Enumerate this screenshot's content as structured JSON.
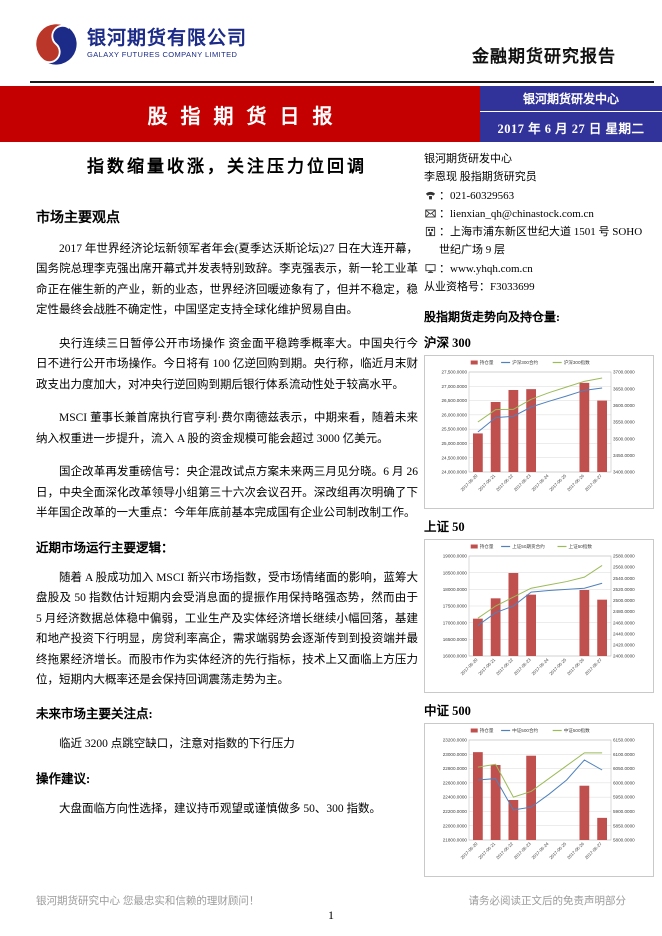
{
  "header": {
    "company_cn": "银河期货有限公司",
    "company_en": "GALAXY FUTURES COMPANY LIMITED",
    "report_type": "金融期货研究报告",
    "banner_title": "股指期货日报",
    "dept": "银河期货研发中心",
    "date": "2017 年 6 月 27 日  星期二",
    "banner_color": "#c50000",
    "info_box_color": "#32329b",
    "logo_color_blue": "#1c2b87",
    "logo_color_red": "#b93629",
    "logo_icon": "galaxy-swirl-icon"
  },
  "article": {
    "title": "指数缩量收涨，关注压力位回调",
    "heading_main": "市场主要观点",
    "p1": "2017 年世界经济论坛新领军者年会(夏季达沃斯论坛)27 日在大连开幕，国务院总理李克强出席开幕式并发表特别致辞。李克强表示，新一轮工业革命正在催生新的产业，新的业态，世界经济回暖迹象有了，但并不稳定，稳定性最终会战胜不确定性，中国坚定支持全球化维护贸易自由。",
    "p2": "央行连续三日暂停公开市场操作 资金面平稳跨季概率大。中国央行今日不进行公开市场操作。今日将有 100 亿逆回购到期。央行称，临近月末财政支出力度加大，对冲央行逆回购到期后银行体系流动性处于较高水平。",
    "p3": "MSCI 董事长兼首席执行官亨利·费尔南德兹表示，中期来看，随着未来纳入权重进一步提升，流入 A 股的资金规模可能会超过 3000 亿美元。",
    "p4": "国企改革再发重磅信号：央企混改试点方案未来两三月见分晓。6 月 26 日，中央全面深化改革领导小组第三十六次会议召开。深改组再次明确了下半年国企改革的一大重点：今年年底前基本完成国有企业公司制改制工作。",
    "heading_logic": "近期市场运行主要逻辑：",
    "p5": "随着 A 股成功加入 MSCI 新兴市场指数，受市场情绪面的影响，蓝筹大盘股及 50 指数估计短期内会受消息面的提振作用保持略强态势，然而由于 5 月经济数据总体稳中偏弱，工业生产及实体经济增长继续小幅回落，基建和地产投资下行明显，房贷利率高企，需求端弱势会逐渐传到到投资端并最终拖累经济增长。而股市作为实体经济的先行指标，技术上又面临上方压力位，短期内大概率还是会保持回调震荡走势为主。",
    "heading_focus": "未来市场主要关注点:",
    "p6": "临近 3200 点跳空缺口，注意对指数的下行压力",
    "heading_advice": "操作建议:",
    "p7": "大盘面临方向性选择，建议持币观望或谨慎做多 50、300 指数。"
  },
  "contact": {
    "dept": "银河期货研发中心",
    "analyst": "李恩现  股指期货研究员",
    "phone": {
      "icon": "phone-icon",
      "text": "：021-60329563"
    },
    "email": {
      "icon": "email-icon",
      "text": "：lienxian_qh@chinastock.com.cn"
    },
    "address": {
      "icon": "address-icon",
      "text": "：上海市浦东新区世纪大道 1501 号 SOHO 世纪广场 9 层"
    },
    "website": {
      "icon": "website-icon",
      "text": "：www.yhqh.com.cn"
    },
    "license": "从业资格号：F3033699"
  },
  "charts_section": {
    "heading": "股指期货走势向及持仓量:"
  },
  "chart_data": [
    {
      "type": "bar",
      "title": "沪深 300",
      "legend_position": "top",
      "grid": true,
      "categories": [
        "2017-06-20",
        "2017-06-21",
        "2017-06-22",
        "2017-06-23",
        "2017-06-24",
        "2017-06-25",
        "2017-06-26",
        "2017-06-27"
      ],
      "series": [
        {
          "name": "持仓量",
          "type": "bar",
          "axis": "left",
          "color": "#C0504D",
          "values": [
            25350,
            26450,
            26870,
            26900,
            null,
            null,
            27120,
            26500
          ]
        },
        {
          "name": "沪深300合约",
          "type": "line",
          "axis": "right",
          "color": "#4F81BD",
          "values": [
            3520,
            3563,
            3567,
            3595,
            3612,
            3628,
            3645,
            3652
          ]
        },
        {
          "name": "沪深300指数",
          "type": "line",
          "axis": "right",
          "color": "#9BBB59",
          "values": [
            3550,
            3587,
            3588,
            3618,
            3638,
            3655,
            3672,
            3682
          ]
        }
      ],
      "axes": {
        "left": {
          "min": 24000,
          "max": 27500,
          "step": 500,
          "comma": true
        },
        "right": {
          "min": 3400,
          "max": 3700,
          "step": 50,
          "comma": false
        }
      }
    },
    {
      "type": "bar",
      "title": "上证 50",
      "legend_position": "top",
      "grid": true,
      "categories": [
        "2017-06-20",
        "2017-06-21",
        "2017-06-22",
        "2017-06-23",
        "2017-06-24",
        "2017-06-25",
        "2017-06-26",
        "2017-06-27"
      ],
      "series": [
        {
          "name": "持仓量",
          "type": "bar",
          "axis": "left",
          "color": "#C0504D",
          "values": [
            17120,
            17730,
            18490,
            17840,
            null,
            null,
            17980,
            17690
          ]
        },
        {
          "name": "上证50期货合约",
          "type": "line",
          "axis": "right",
          "color": "#4F81BD",
          "values": [
            2455,
            2478,
            2490,
            2515,
            2518,
            2520,
            2522,
            2531
          ]
        },
        {
          "name": "上证50指数",
          "type": "line",
          "axis": "right",
          "color": "#9BBB59",
          "values": [
            2468,
            2490,
            2506,
            2522,
            2528,
            2534,
            2542,
            2563
          ]
        }
      ],
      "axes": {
        "left": {
          "min": 16000,
          "max": 19000,
          "step": 500,
          "comma": false
        },
        "right": {
          "min": 2400,
          "max": 2580,
          "step": 20,
          "comma": false
        }
      }
    },
    {
      "type": "bar",
      "title": "中证 500",
      "legend_position": "top",
      "grid": true,
      "categories": [
        "2017-06-20",
        "2017-06-21",
        "2017-06-22",
        "2017-06-23",
        "2017-06-24",
        "2017-06-25",
        "2017-06-26",
        "2017-06-27"
      ],
      "series": [
        {
          "name": "持仓量",
          "type": "bar",
          "axis": "left",
          "color": "#C0504D",
          "values": [
            23030,
            22850,
            22360,
            22980,
            null,
            null,
            22560,
            22110
          ]
        },
        {
          "name": "中证500合约",
          "type": "line",
          "axis": "right",
          "color": "#4F81BD",
          "values": [
            6010,
            6015,
            5905,
            5915,
            5960,
            6010,
            6080,
            6045
          ]
        },
        {
          "name": "中证500指数",
          "type": "line",
          "axis": "right",
          "color": "#9BBB59",
          "values": [
            6055,
            6065,
            5950,
            5970,
            6015,
            6060,
            6105,
            6105
          ]
        }
      ],
      "axes": {
        "left": {
          "min": 21800,
          "max": 23200,
          "step": 200,
          "comma": false
        },
        "right": {
          "min": 5800,
          "max": 6150,
          "step": 50,
          "comma": false
        }
      }
    }
  ],
  "footer": {
    "left": "银河期货研究中心 您最忠实和信赖的理财顾问！",
    "right": "请务必阅读正文后的免责声明部分",
    "page": "1"
  }
}
